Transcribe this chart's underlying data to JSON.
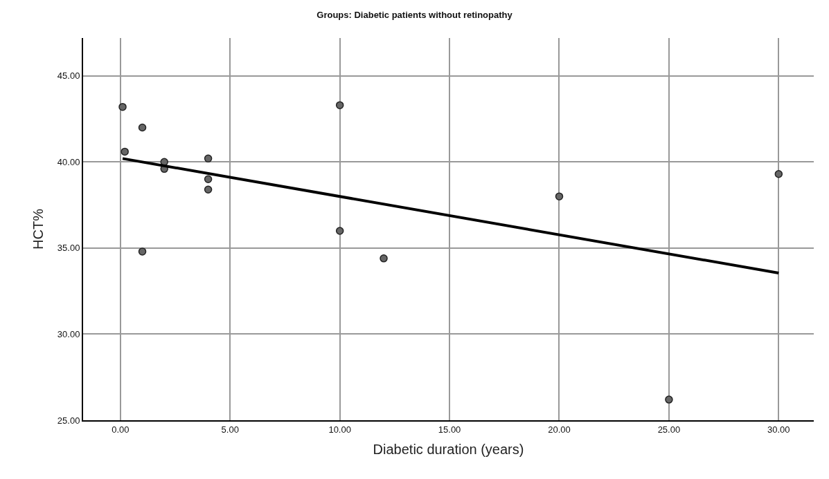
{
  "chart_data": {
    "type": "scatter",
    "title": "Groups: Diabetic patients without retinopathy",
    "xlabel": "Diabetic duration (years)",
    "ylabel": "HCT%",
    "xlim": [
      -1.7,
      31.6
    ],
    "ylim": [
      25,
      47.2
    ],
    "xticks": [
      {
        "value": 0,
        "label": "0.00"
      },
      {
        "value": 5,
        "label": "5.00"
      },
      {
        "value": 10,
        "label": "10.00"
      },
      {
        "value": 15,
        "label": "15.00"
      },
      {
        "value": 20,
        "label": "20.00"
      },
      {
        "value": 25,
        "label": "25.00"
      },
      {
        "value": 30,
        "label": "30.00"
      }
    ],
    "yticks": [
      {
        "value": 25,
        "label": "25.00"
      },
      {
        "value": 30,
        "label": "30.00"
      },
      {
        "value": 35,
        "label": "35.00"
      },
      {
        "value": 40,
        "label": "40.00"
      },
      {
        "value": 45,
        "label": "45.00"
      }
    ],
    "grid": true,
    "marker": "circle",
    "series": [
      {
        "color": "#666666",
        "x": [
          0.1,
          1,
          0.2,
          2,
          2,
          4,
          4,
          4,
          10,
          10,
          1,
          12,
          20,
          25,
          30
        ],
        "values": [
          43.2,
          42.0,
          40.6,
          40.0,
          39.6,
          40.2,
          39.0,
          38.4,
          43.3,
          36.0,
          34.8,
          34.4,
          38.0,
          26.2,
          39.3
        ]
      },
      {
        "type": "line",
        "color": "#000000",
        "marker": "none",
        "x": [
          0.1,
          30
        ],
        "values": [
          40.2,
          33.55
        ]
      }
    ]
  }
}
